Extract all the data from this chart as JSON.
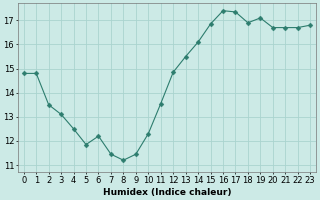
{
  "x": [
    0,
    1,
    2,
    3,
    4,
    5,
    6,
    7,
    8,
    9,
    10,
    11,
    12,
    13,
    14,
    15,
    16,
    17,
    18,
    19,
    20,
    21,
    22,
    23
  ],
  "y": [
    14.8,
    14.8,
    13.5,
    13.1,
    12.5,
    11.85,
    12.2,
    11.45,
    11.2,
    11.45,
    12.3,
    13.55,
    14.85,
    15.5,
    16.1,
    16.85,
    17.4,
    17.35,
    16.9,
    17.1,
    16.7,
    16.7,
    16.7,
    16.8
  ],
  "line_color": "#2d7d6e",
  "marker": "D",
  "marker_size": 2.5,
  "bg_color": "#cceae6",
  "grid_color": "#aad4cf",
  "xlabel": "Humidex (Indice chaleur)",
  "xlim": [
    -0.5,
    23.5
  ],
  "ylim": [
    10.7,
    17.7
  ],
  "yticks": [
    11,
    12,
    13,
    14,
    15,
    16,
    17
  ],
  "xticks": [
    0,
    1,
    2,
    3,
    4,
    5,
    6,
    7,
    8,
    9,
    10,
    11,
    12,
    13,
    14,
    15,
    16,
    17,
    18,
    19,
    20,
    21,
    22,
    23
  ],
  "xlabel_fontsize": 6.5,
  "tick_fontsize": 6.0
}
